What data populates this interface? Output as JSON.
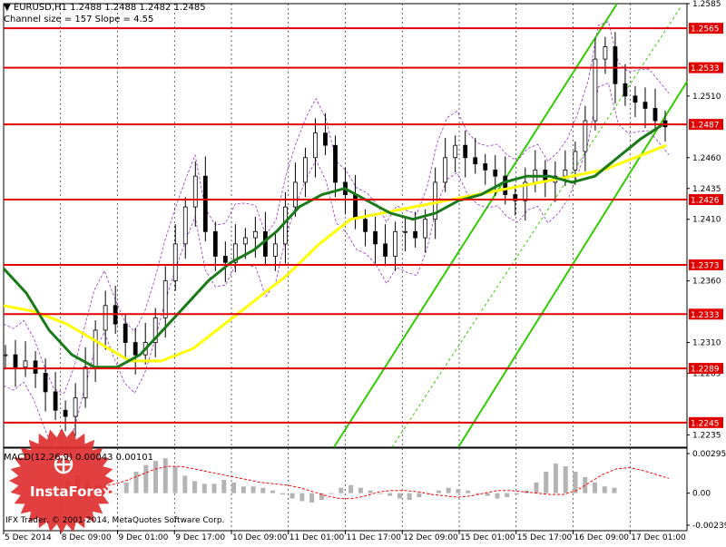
{
  "header": {
    "symbol_line": "EURUSD,H1  1.2488 1.2488 1.2482 1.2485",
    "channel_line": "Channel size = 157 Slope = 4.55"
  },
  "macd_header": "MACD(12,26,9) 0.00043 0.00101",
  "copyright": "IFX Trader, © 2001-2014, MetaQuotes Software Corp.",
  "logo_text": "InstaForex",
  "colors": {
    "level_line": "#e00000",
    "price_label_bg": "#e00000",
    "candle": "#000000",
    "ma_fast": "#1a7a1a",
    "ma_slow": "#ffff00",
    "channel": "#33cc00",
    "bands": "#9933cc",
    "macd_hist": "#b4b4b4",
    "macd_signal": "#ff0000",
    "logo": "#e03030"
  },
  "chart_data": {
    "type": "candlestick",
    "symbol": "EURUSD",
    "timeframe": "H1",
    "ohlc_last": {
      "open": 1.2488,
      "high": 1.2488,
      "low": 1.2482,
      "close": 1.2485
    },
    "ylim": [
      1.2225,
      1.2585
    ],
    "y_ticks": [
      "1.2585",
      "1.2510",
      "1.2460",
      "1.2435",
      "1.2410",
      "1.2360",
      "1.2310",
      "1.2285",
      "1.2235"
    ],
    "price_levels": [
      "1.2565",
      "1.2533",
      "1.2487",
      "1.2426",
      "1.2373",
      "1.2333",
      "1.2289",
      "1.2245"
    ],
    "x_ticks": [
      "5 Dec 2014",
      "8 Dec 09:00",
      "9 Dec 01:00",
      "9 Dec 17:00",
      "10 Dec 09:00",
      "11 Dec 01:00",
      "11 Dec 17:00",
      "12 Dec 09:00",
      "15 Dec 01:00",
      "15 Dec 17:00",
      "16 Dec 09:00",
      "17 Dec 01:00"
    ],
    "close_path": [
      1.23,
      1.229,
      1.2295,
      1.2285,
      1.227,
      1.2255,
      1.225,
      1.2265,
      1.229,
      1.232,
      1.234,
      1.2325,
      1.231,
      1.23,
      1.231,
      1.233,
      1.236,
      1.239,
      1.242,
      1.2445,
      1.24,
      1.238,
      1.2375,
      1.239,
      1.2395,
      1.24,
      1.238,
      1.239,
      1.242,
      1.244,
      1.246,
      1.248,
      1.247,
      1.244,
      1.243,
      1.241,
      1.24,
      1.239,
      1.238,
      1.24,
      1.24,
      1.2395,
      1.241,
      1.244,
      1.246,
      1.247,
      1.246,
      1.2455,
      1.245,
      1.2445,
      1.243,
      1.2425,
      1.244,
      1.245,
      1.244,
      1.2445,
      1.245,
      1.2465,
      1.249,
      1.254,
      1.255,
      1.252,
      1.251,
      1.2505,
      1.25,
      1.249,
      1.2485
    ],
    "ma_fast": [
      1.237,
      1.235,
      1.232,
      1.23,
      1.229,
      1.229,
      1.23,
      1.232,
      1.234,
      1.236,
      1.2375,
      1.2385,
      1.24,
      1.242,
      1.243,
      1.2435,
      1.2425,
      1.2415,
      1.241,
      1.2415,
      1.2425,
      1.243,
      1.244,
      1.2445,
      1.2445,
      1.244,
      1.2445,
      1.246,
      1.2475,
      1.2487
    ],
    "ma_slow": [
      1.234,
      1.2335,
      1.2325,
      1.231,
      1.2295,
      1.2295,
      1.2305,
      1.2325,
      1.2345,
      1.2365,
      1.239,
      1.241,
      1.2415,
      1.242,
      1.2425,
      1.243,
      1.2435,
      1.244,
      1.2445,
      1.245,
      1.246,
      1.247
    ],
    "indicator": {
      "name": "MACD(12,26,9)",
      "values": [
        "0.00043",
        "0.00101"
      ],
      "y_ticks": [
        "0.00295",
        "0.00",
        "-0.00239"
      ],
      "ylim": [
        -0.00239,
        0.00295
      ],
      "histogram": [
        0.0005,
        0.001,
        0.0013,
        0.001,
        0.0006,
        0.0003,
        0.0,
        0.0008,
        0.0016,
        0.0021,
        0.0024,
        0.0026,
        0.002,
        0.0013,
        0.0009,
        0.0007,
        0.0007,
        0.001,
        0.0008,
        0.0005,
        0.0005,
        0.0004,
        0.0002,
        -0.0001,
        -0.0004,
        -0.0006,
        -0.0007,
        -0.0005,
        0.0,
        0.0004,
        0.0006,
        0.0004,
        0.0002,
        0.0,
        -0.0002,
        -0.0004,
        -0.0005,
        -0.0003,
        -0.0001,
        0.0002,
        0.0004,
        0.0003,
        0.0002,
        0.0,
        -0.0002,
        -0.0004,
        -0.0003,
        -0.0001,
        0.0002,
        0.0008,
        0.0016,
        0.0022,
        0.002,
        0.0016,
        0.0012,
        0.0008,
        0.0005,
        0.0004
      ],
      "signal": [
        0.0003,
        0.0004,
        0.0005,
        0.0007,
        0.001,
        0.0014,
        0.0018,
        0.002,
        0.002,
        0.0018,
        0.0016,
        0.0014,
        0.0012,
        0.001,
        0.0008,
        0.0007,
        0.0006,
        0.0004,
        0.0001,
        -0.0002,
        -0.0004,
        -0.0004,
        -0.0002,
        0.0001,
        0.0002,
        0.0002,
        0.0001,
        -0.0001,
        -0.0002,
        -0.0003,
        -0.0002,
        0.0,
        0.0002,
        0.0002,
        0.0001,
        0.0,
        -0.0001,
        -0.0001,
        0.0002,
        0.0008,
        0.0014,
        0.0018,
        0.0019,
        0.0017,
        0.0014,
        0.0011
      ]
    }
  }
}
